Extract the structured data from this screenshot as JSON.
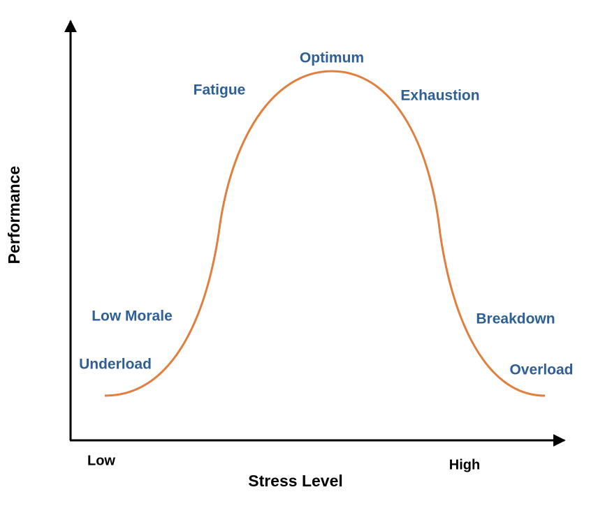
{
  "axes": {
    "x_label": "Stress Level",
    "y_label": "Performance",
    "low": "Low",
    "high": "High"
  },
  "zones": [
    "Underload",
    "Low Morale",
    "Fatigue",
    "Optimum",
    "Exhaustion",
    "Breakdown",
    "Overload"
  ]
}
